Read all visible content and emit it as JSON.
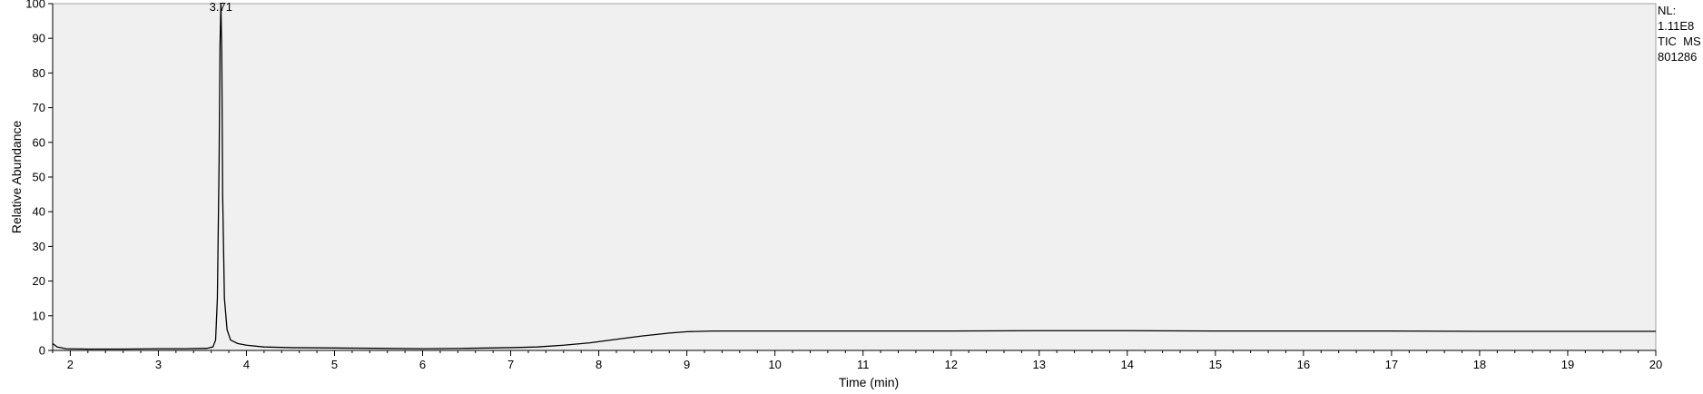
{
  "chart_data": {
    "type": "line",
    "title": "",
    "xlabel": "Time (min)",
    "ylabel": "Relative Abundance",
    "xlim": [
      1.8,
      20
    ],
    "ylim": [
      0,
      100
    ],
    "xticks": [
      2,
      3,
      4,
      5,
      6,
      7,
      8,
      9,
      10,
      11,
      12,
      13,
      14,
      15,
      16,
      17,
      18,
      19,
      20
    ],
    "yticks": [
      0,
      10,
      20,
      30,
      40,
      50,
      60,
      70,
      80,
      90,
      100
    ],
    "grid": false,
    "background_color": "#f0f0f0",
    "line_color": "#000000",
    "series": [
      {
        "x": [
          1.8,
          1.85,
          1.95,
          2.2,
          2.6,
          3.0,
          3.3,
          3.55,
          3.62,
          3.65,
          3.67,
          3.69,
          3.7,
          3.71,
          3.72,
          3.73,
          3.75,
          3.78,
          3.82,
          3.9,
          4.0,
          4.2,
          4.5,
          5.0,
          5.5,
          6.0,
          6.5,
          7.0,
          7.3,
          7.6,
          7.9,
          8.2,
          8.5,
          8.8,
          9.0,
          9.3,
          10.0,
          11.0,
          12.0,
          13.0,
          14.0,
          15.0,
          16.0,
          17.0,
          18.0,
          19.0,
          20.0
        ],
        "y": [
          2.0,
          1.0,
          0.5,
          0.4,
          0.4,
          0.5,
          0.5,
          0.6,
          1.0,
          3.0,
          15.0,
          55.0,
          88.0,
          100.0,
          86.0,
          45.0,
          15.0,
          6.0,
          3.0,
          2.0,
          1.5,
          1.0,
          0.8,
          0.7,
          0.6,
          0.5,
          0.6,
          0.8,
          1.0,
          1.5,
          2.2,
          3.2,
          4.2,
          5.0,
          5.4,
          5.6,
          5.6,
          5.6,
          5.6,
          5.7,
          5.7,
          5.6,
          5.6,
          5.6,
          5.5,
          5.5,
          5.5
        ]
      }
    ],
    "annotations": [
      {
        "text": "3.71",
        "x": 3.71,
        "y": 100
      }
    ]
  },
  "info": {
    "nl_label": "NL:",
    "nl_value": "1.11E8",
    "scan_type": "TIC  MS",
    "sample_id": "801286"
  }
}
